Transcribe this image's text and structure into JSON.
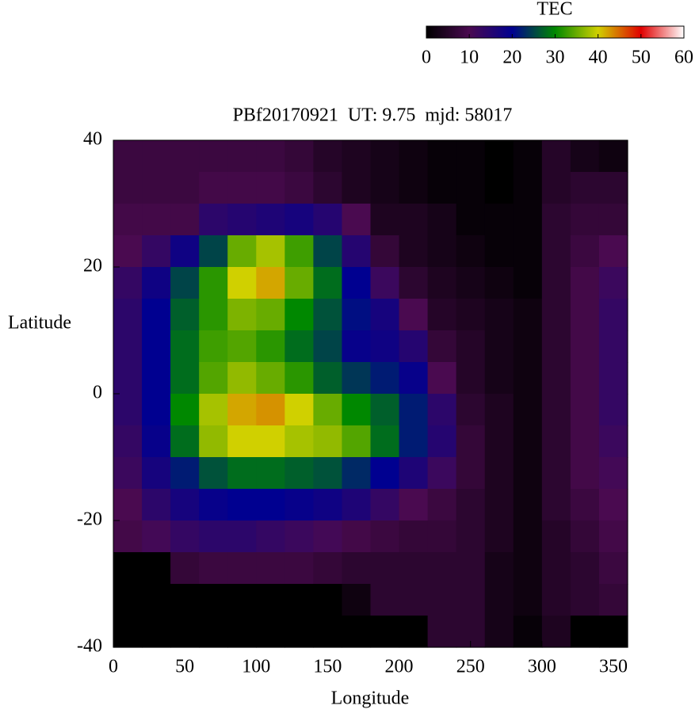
{
  "chart_data": {
    "type": "heatmap",
    "title": "PBf20170921  UT: 9.75  mjd: 58017",
    "xlabel": "Longitude",
    "ylabel": "Latitude",
    "colorbar_label": "TEC",
    "x": [
      10,
      30,
      50,
      70,
      90,
      110,
      130,
      150,
      170,
      190,
      210,
      230,
      250,
      270,
      290,
      310,
      330,
      350
    ],
    "y": [
      37.5,
      32.5,
      27.5,
      22.5,
      17.5,
      12.5,
      7.5,
      2.5,
      -2.5,
      -7.5,
      -12.5,
      -17.5,
      -22.5,
      -27.5,
      -32.5,
      -37.5
    ],
    "z": [
      [
        8,
        8,
        8,
        8,
        8,
        8,
        7,
        5,
        4,
        3,
        2,
        1,
        1,
        0,
        1,
        5,
        3,
        2
      ],
      [
        8,
        8,
        8,
        9,
        9,
        9,
        8,
        6,
        4,
        3,
        2,
        1,
        1,
        0,
        1,
        5,
        6,
        6
      ],
      [
        9,
        9,
        9,
        14,
        15,
        16,
        17,
        15,
        10,
        4,
        4,
        3,
        1,
        1,
        1,
        6,
        7,
        7
      ],
      [
        10,
        13,
        18,
        25,
        35,
        38,
        33,
        25,
        15,
        7,
        4,
        3,
        2,
        1,
        1,
        6,
        8,
        10
      ],
      [
        13,
        18,
        25,
        32,
        40,
        42,
        35,
        28,
        20,
        12,
        6,
        4,
        3,
        2,
        1,
        6,
        9,
        12
      ],
      [
        14,
        20,
        27,
        32,
        36,
        35,
        30,
        26,
        21,
        17,
        10,
        5,
        4,
        3,
        2,
        6,
        9,
        13
      ],
      [
        14,
        20,
        28,
        33,
        34,
        32,
        28,
        25,
        19,
        18,
        15,
        7,
        5,
        3,
        2,
        6,
        9,
        13
      ],
      [
        14,
        20,
        28,
        34,
        37,
        35,
        32,
        27,
        24,
        22,
        19,
        10,
        5,
        3,
        2,
        6,
        9,
        13
      ],
      [
        14,
        20,
        30,
        38,
        42,
        43,
        40,
        35,
        30,
        27,
        22,
        14,
        6,
        4,
        2,
        6,
        9,
        13
      ],
      [
        13,
        19,
        28,
        37,
        40,
        40,
        38,
        37,
        34,
        28,
        22,
        15,
        7,
        4,
        2,
        6,
        9,
        12
      ],
      [
        12,
        17,
        22,
        26,
        28,
        28,
        27,
        26,
        23,
        20,
        16,
        12,
        7,
        4,
        2,
        6,
        9,
        11
      ],
      [
        10,
        14,
        17,
        19,
        20,
        20,
        19,
        18,
        16,
        13,
        10,
        8,
        6,
        4,
        2,
        6,
        8,
        10
      ],
      [
        9,
        11,
        13,
        14,
        14,
        13,
        12,
        11,
        9,
        8,
        7,
        7,
        6,
        4,
        2,
        5,
        7,
        9
      ],
      [
        0,
        0,
        7,
        8,
        8,
        8,
        8,
        7,
        6,
        6,
        6,
        6,
        6,
        3,
        2,
        5,
        6,
        8
      ],
      [
        0,
        0,
        0,
        0,
        0,
        0,
        0,
        0,
        2,
        6,
        6,
        6,
        6,
        3,
        2,
        5,
        6,
        7
      ],
      [
        0,
        0,
        0,
        0,
        0,
        0,
        0,
        0,
        0,
        0,
        0,
        6,
        6,
        3,
        1,
        4,
        0,
        0
      ]
    ],
    "xlim": [
      0,
      360
    ],
    "xticks": [
      0,
      50,
      100,
      150,
      200,
      250,
      300,
      350
    ],
    "ylim": [
      -40,
      40
    ],
    "yticks": [
      -40,
      -20,
      0,
      20,
      40
    ],
    "zlim": [
      0,
      60
    ],
    "zticks": [
      0,
      10,
      20,
      30,
      40,
      50,
      60
    ],
    "colormap": [
      "#000000",
      "#4a0a50",
      "#000090",
      "#008800",
      "#d0d000",
      "#e00000",
      "#ffffff"
    ]
  }
}
